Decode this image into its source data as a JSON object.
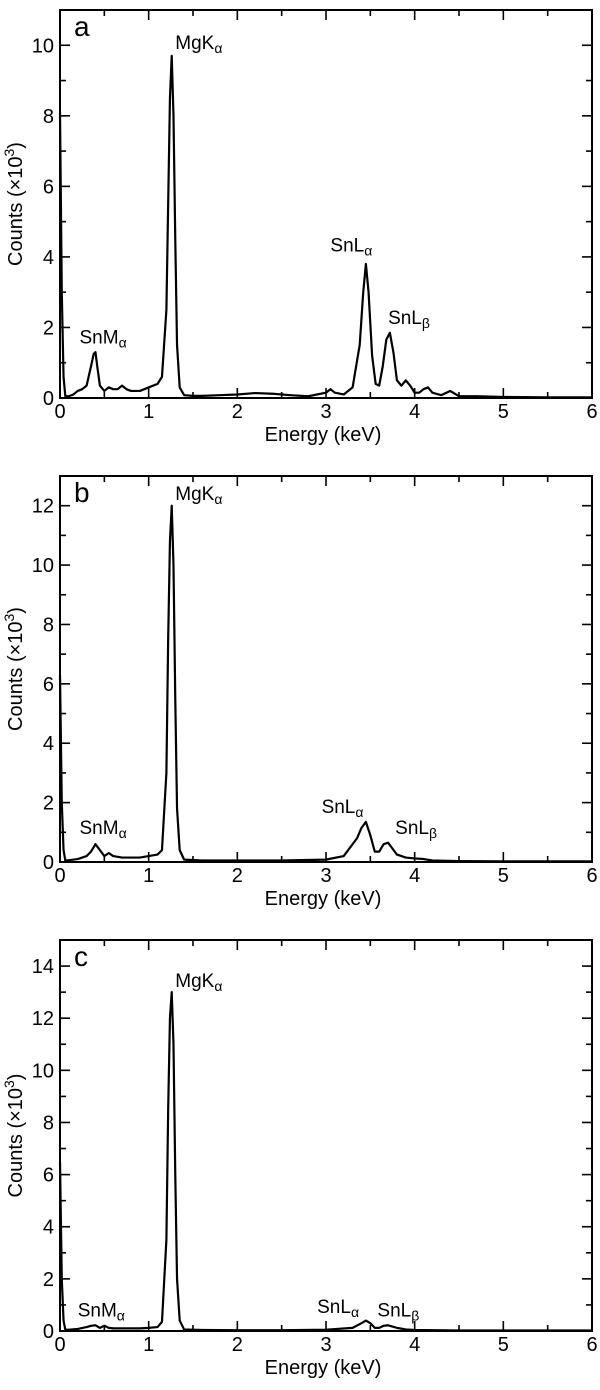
{
  "chart_data": [
    {
      "type": "line",
      "panel": "a",
      "xlabel": "Energy (keV)",
      "ylabel": "Counts (×10",
      "ylabel_sup": "3",
      "ylabel_close": ")",
      "xlim": [
        0,
        6
      ],
      "ylim": [
        0,
        11
      ],
      "xticks": [
        0,
        1,
        2,
        3,
        4,
        5,
        6
      ],
      "yticks": [
        0,
        2,
        4,
        6,
        8,
        10
      ],
      "x": [
        0,
        0.02,
        0.04,
        0.06,
        0.1,
        0.15,
        0.2,
        0.25,
        0.3,
        0.35,
        0.38,
        0.4,
        0.42,
        0.45,
        0.5,
        0.55,
        0.6,
        0.65,
        0.7,
        0.75,
        0.8,
        0.85,
        0.9,
        0.95,
        1.0,
        1.05,
        1.1,
        1.15,
        1.2,
        1.22,
        1.24,
        1.26,
        1.28,
        1.3,
        1.32,
        1.35,
        1.4,
        1.5,
        1.6,
        1.8,
        2.0,
        2.2,
        2.4,
        2.6,
        2.8,
        3.0,
        3.05,
        3.1,
        3.2,
        3.3,
        3.38,
        3.42,
        3.45,
        3.48,
        3.52,
        3.56,
        3.6,
        3.64,
        3.68,
        3.72,
        3.76,
        3.8,
        3.85,
        3.9,
        3.95,
        4.0,
        4.05,
        4.1,
        4.15,
        4.2,
        4.3,
        4.4,
        4.5,
        4.7,
        5.0,
        5.5,
        6.0
      ],
      "y": [
        8.1,
        3.0,
        0.6,
        0.05,
        0.05,
        0.1,
        0.2,
        0.25,
        0.35,
        0.9,
        1.25,
        1.3,
        0.9,
        0.35,
        0.2,
        0.3,
        0.25,
        0.25,
        0.35,
        0.25,
        0.2,
        0.2,
        0.2,
        0.25,
        0.3,
        0.35,
        0.4,
        0.6,
        2.5,
        5.5,
        8.5,
        9.7,
        8.0,
        4.5,
        1.5,
        0.3,
        0.08,
        0.06,
        0.06,
        0.08,
        0.1,
        0.14,
        0.12,
        0.08,
        0.05,
        0.15,
        0.25,
        0.15,
        0.1,
        0.3,
        1.5,
        3.0,
        3.8,
        3.0,
        1.2,
        0.4,
        0.35,
        0.9,
        1.65,
        1.85,
        1.3,
        0.5,
        0.35,
        0.5,
        0.35,
        0.15,
        0.15,
        0.25,
        0.3,
        0.15,
        0.08,
        0.2,
        0.05,
        0.05,
        0.03,
        0.02,
        0.02
      ],
      "annotations": [
        {
          "name": "MgK",
          "sub": "α",
          "x": 1.3,
          "y": 9.9
        },
        {
          "name": "SnL",
          "sub": "α",
          "x": 3.05,
          "y": 4.15
        },
        {
          "name": "SnL",
          "sub": "β",
          "x": 3.7,
          "y": 2.1
        },
        {
          "name": "SnM",
          "sub": "α",
          "x": 0.22,
          "y": 1.55
        }
      ]
    },
    {
      "type": "line",
      "panel": "b",
      "xlabel": "Energy (keV)",
      "ylabel": "Counts (×10",
      "ylabel_sup": "3",
      "ylabel_close": ")",
      "xlim": [
        0,
        6
      ],
      "ylim": [
        0,
        13
      ],
      "xticks": [
        0,
        1,
        2,
        3,
        4,
        5,
        6
      ],
      "yticks": [
        0,
        2,
        4,
        6,
        8,
        10,
        12
      ],
      "x": [
        0,
        0.02,
        0.04,
        0.06,
        0.1,
        0.2,
        0.3,
        0.35,
        0.4,
        0.45,
        0.5,
        0.55,
        0.6,
        0.7,
        0.8,
        0.9,
        1.0,
        1.1,
        1.15,
        1.2,
        1.22,
        1.24,
        1.26,
        1.28,
        1.3,
        1.32,
        1.35,
        1.4,
        1.6,
        2.0,
        2.5,
        3.0,
        3.2,
        3.35,
        3.4,
        3.45,
        3.5,
        3.55,
        3.6,
        3.65,
        3.7,
        3.75,
        3.8,
        3.9,
        4.0,
        4.1,
        4.2,
        4.5,
        5.0,
        5.5,
        6.0
      ],
      "y": [
        6.3,
        2.0,
        0.4,
        0.05,
        0.06,
        0.1,
        0.2,
        0.35,
        0.6,
        0.4,
        0.2,
        0.3,
        0.2,
        0.15,
        0.15,
        0.15,
        0.2,
        0.25,
        0.4,
        3.0,
        7.5,
        10.8,
        12.0,
        10.0,
        5.5,
        1.8,
        0.4,
        0.08,
        0.05,
        0.05,
        0.05,
        0.08,
        0.2,
        0.8,
        1.15,
        1.35,
        0.9,
        0.35,
        0.35,
        0.6,
        0.65,
        0.45,
        0.25,
        0.15,
        0.12,
        0.1,
        0.05,
        0.03,
        0.02,
        0.02,
        0.02
      ],
      "annotations": [
        {
          "name": "MgK",
          "sub": "α",
          "x": 1.3,
          "y": 12.2
        },
        {
          "name": "SnL",
          "sub": "α",
          "x": 2.95,
          "y": 1.65
        },
        {
          "name": "SnL",
          "sub": "β",
          "x": 3.78,
          "y": 0.95
        },
        {
          "name": "SnM",
          "sub": "α",
          "x": 0.22,
          "y": 0.95
        }
      ]
    },
    {
      "type": "line",
      "panel": "c",
      "xlabel": "Energy (keV)",
      "ylabel": "Counts (×10",
      "ylabel_sup": "3",
      "ylabel_close": ")",
      "xlim": [
        0,
        6
      ],
      "ylim": [
        0,
        15
      ],
      "xticks": [
        0,
        1,
        2,
        3,
        4,
        5,
        6
      ],
      "yticks": [
        0,
        2,
        4,
        6,
        8,
        10,
        12,
        14
      ],
      "x": [
        0,
        0.02,
        0.04,
        0.06,
        0.1,
        0.2,
        0.3,
        0.35,
        0.4,
        0.45,
        0.5,
        0.55,
        0.6,
        0.7,
        0.8,
        0.9,
        1.0,
        1.1,
        1.15,
        1.2,
        1.22,
        1.24,
        1.26,
        1.28,
        1.3,
        1.32,
        1.35,
        1.4,
        1.6,
        2.0,
        2.5,
        3.0,
        3.3,
        3.4,
        3.45,
        3.5,
        3.55,
        3.6,
        3.65,
        3.7,
        3.8,
        3.9,
        4.0,
        4.5,
        5.0,
        5.5,
        6.0
      ],
      "y": [
        6.5,
        2.0,
        0.4,
        0.05,
        0.05,
        0.08,
        0.15,
        0.2,
        0.22,
        0.12,
        0.2,
        0.12,
        0.1,
        0.1,
        0.1,
        0.1,
        0.12,
        0.15,
        0.35,
        3.5,
        8.5,
        12.0,
        13.0,
        11.0,
        6.0,
        2.0,
        0.4,
        0.06,
        0.04,
        0.03,
        0.03,
        0.05,
        0.12,
        0.3,
        0.4,
        0.3,
        0.12,
        0.12,
        0.2,
        0.22,
        0.12,
        0.06,
        0.04,
        0.02,
        0.02,
        0.02,
        0.02
      ],
      "annotations": [
        {
          "name": "MgK",
          "sub": "α",
          "x": 1.3,
          "y": 13.2
        },
        {
          "name": "SnL",
          "sub": "α",
          "x": 2.9,
          "y": 0.7
        },
        {
          "name": "SnL",
          "sub": "β",
          "x": 3.58,
          "y": 0.55
        },
        {
          "name": "SnM",
          "sub": "α",
          "x": 0.2,
          "y": 0.55
        }
      ]
    }
  ]
}
